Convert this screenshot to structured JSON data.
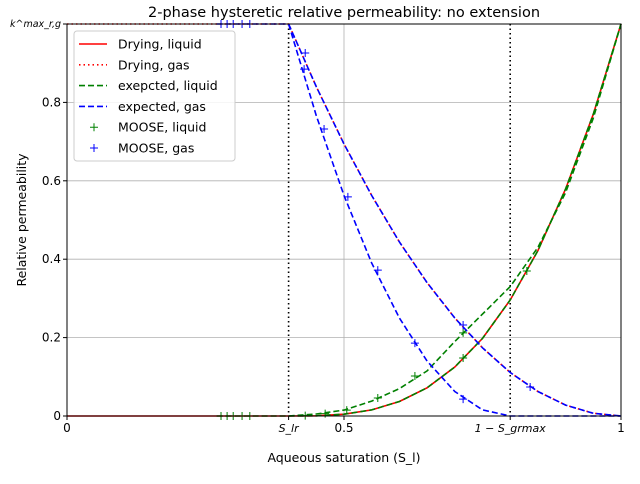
{
  "chart_data": {
    "type": "line",
    "title": "2-phase hysteretic relative permeability: no extension",
    "xlabel": "Aqueous saturation (S_l)",
    "ylabel": "Relative permeability",
    "xlim": [
      0,
      1
    ],
    "ylim": [
      0,
      1
    ],
    "grid": true,
    "legend_placement": "top-left",
    "x_ticks": [
      {
        "value": 0,
        "label": "0"
      },
      {
        "value": 0.4,
        "label": "S_lr"
      },
      {
        "value": 0.5,
        "label": "0.5"
      },
      {
        "value": 0.8,
        "label": "1 − S_grmax"
      },
      {
        "value": 1,
        "label": "1"
      }
    ],
    "y_ticks": [
      {
        "value": 0,
        "label": "0"
      },
      {
        "value": 0.2,
        "label": "0.2"
      },
      {
        "value": 0.4,
        "label": "0.4"
      },
      {
        "value": 0.6,
        "label": "0.6"
      },
      {
        "value": 0.8,
        "label": "0.8"
      },
      {
        "value": 1,
        "label": "k^max_r,g"
      }
    ],
    "vertical_markers": [
      0.4,
      0.8
    ],
    "series": [
      {
        "name": "Drying, liquid",
        "style": "solid",
        "color": "#ff0000",
        "points": [
          [
            0,
            0
          ],
          [
            0.4,
            0
          ],
          [
            0.45,
            0.0006
          ],
          [
            0.5,
            0.0046
          ],
          [
            0.55,
            0.0156
          ],
          [
            0.6,
            0.037
          ],
          [
            0.65,
            0.072
          ],
          [
            0.7,
            0.125
          ],
          [
            0.75,
            0.198
          ],
          [
            0.8,
            0.296
          ],
          [
            0.85,
            0.422
          ],
          [
            0.9,
            0.579
          ],
          [
            0.95,
            0.77
          ],
          [
            1,
            1
          ]
        ]
      },
      {
        "name": "Drying, gas",
        "style": "dotted",
        "color": "#ff0000",
        "points": [
          [
            0,
            1
          ],
          [
            0.4,
            1
          ],
          [
            0.45,
            0.84
          ],
          [
            0.5,
            0.694
          ],
          [
            0.55,
            0.5625
          ],
          [
            0.6,
            0.444
          ],
          [
            0.65,
            0.34
          ],
          [
            0.7,
            0.25
          ],
          [
            0.75,
            0.174
          ],
          [
            0.8,
            0.111
          ],
          [
            0.85,
            0.0625
          ],
          [
            0.9,
            0.0278
          ],
          [
            0.95,
            0.0069
          ],
          [
            1,
            0
          ]
        ]
      },
      {
        "name": "exepcted, liquid",
        "style": "dashed",
        "color": "#008000",
        "points": [
          [
            0.27,
            0
          ],
          [
            0.4,
            0
          ],
          [
            0.45,
            0.0006
          ],
          [
            0.5,
            0.0046
          ],
          [
            0.55,
            0.0156
          ],
          [
            0.6,
            0.037
          ],
          [
            0.65,
            0.072
          ],
          [
            0.7,
            0.125
          ],
          [
            0.75,
            0.198
          ],
          [
            0.8,
            0.296
          ],
          [
            0.85,
            0.422
          ],
          [
            0.9,
            0.579
          ],
          [
            0.95,
            0.77
          ],
          [
            1,
            1
          ]
        ]
      },
      {
        "name": "",
        "style": "dashed",
        "color": "#008000",
        "points": [
          [
            0.4,
            0
          ],
          [
            0.45,
            0.005
          ],
          [
            0.5,
            0.015
          ],
          [
            0.55,
            0.038
          ],
          [
            0.6,
            0.07
          ],
          [
            0.65,
            0.115
          ],
          [
            0.7,
            0.19
          ],
          [
            0.75,
            0.26
          ],
          [
            0.8,
            0.33
          ],
          [
            0.85,
            0.43
          ],
          [
            0.9,
            0.57
          ],
          [
            0.95,
            0.76
          ],
          [
            1,
            1
          ]
        ]
      },
      {
        "name": "expected, gas",
        "style": "dashed",
        "color": "#0000ff",
        "points": [
          [
            0.27,
            1
          ],
          [
            0.4,
            1
          ],
          [
            0.45,
            0.84
          ],
          [
            0.5,
            0.694
          ],
          [
            0.55,
            0.5625
          ],
          [
            0.6,
            0.444
          ],
          [
            0.65,
            0.34
          ],
          [
            0.7,
            0.25
          ],
          [
            0.75,
            0.174
          ],
          [
            0.8,
            0.111
          ],
          [
            0.85,
            0.0625
          ],
          [
            0.9,
            0.0278
          ],
          [
            0.95,
            0.0069
          ],
          [
            1,
            0
          ]
        ]
      },
      {
        "name": "",
        "style": "dashed",
        "color": "#0000ff",
        "points": [
          [
            0.4,
            1
          ],
          [
            0.45,
            0.766
          ],
          [
            0.5,
            0.5625
          ],
          [
            0.55,
            0.39
          ],
          [
            0.6,
            0.25
          ],
          [
            0.65,
            0.14
          ],
          [
            0.7,
            0.0625
          ],
          [
            0.75,
            0.0156
          ],
          [
            0.8,
            0
          ],
          [
            1,
            0
          ]
        ]
      },
      {
        "name": "MOOSE, liquid",
        "style": "marker",
        "color": "#008000",
        "points": [
          [
            0.278,
            0
          ],
          [
            0.289,
            0
          ],
          [
            0.3,
            0
          ],
          [
            0.316,
            0
          ],
          [
            0.33,
            0
          ],
          [
            0.43,
            0.001
          ],
          [
            0.466,
            0.006
          ],
          [
            0.505,
            0.015
          ],
          [
            0.561,
            0.046
          ],
          [
            0.628,
            0.102
          ],
          [
            0.715,
            0.148
          ],
          [
            0.715,
            0.212
          ],
          [
            0.83,
            0.37
          ]
        ]
      },
      {
        "name": "MOOSE, gas",
        "style": "marker",
        "color": "#0000ff",
        "points": [
          [
            0.278,
            1
          ],
          [
            0.289,
            1
          ],
          [
            0.3,
            1
          ],
          [
            0.316,
            1
          ],
          [
            0.33,
            1
          ],
          [
            0.43,
            0.926
          ],
          [
            0.428,
            0.885
          ],
          [
            0.464,
            0.732
          ],
          [
            0.507,
            0.559
          ],
          [
            0.561,
            0.372
          ],
          [
            0.628,
            0.186
          ],
          [
            0.715,
            0.043
          ],
          [
            0.715,
            0.232
          ],
          [
            0.836,
            0.074
          ]
        ]
      }
    ]
  }
}
